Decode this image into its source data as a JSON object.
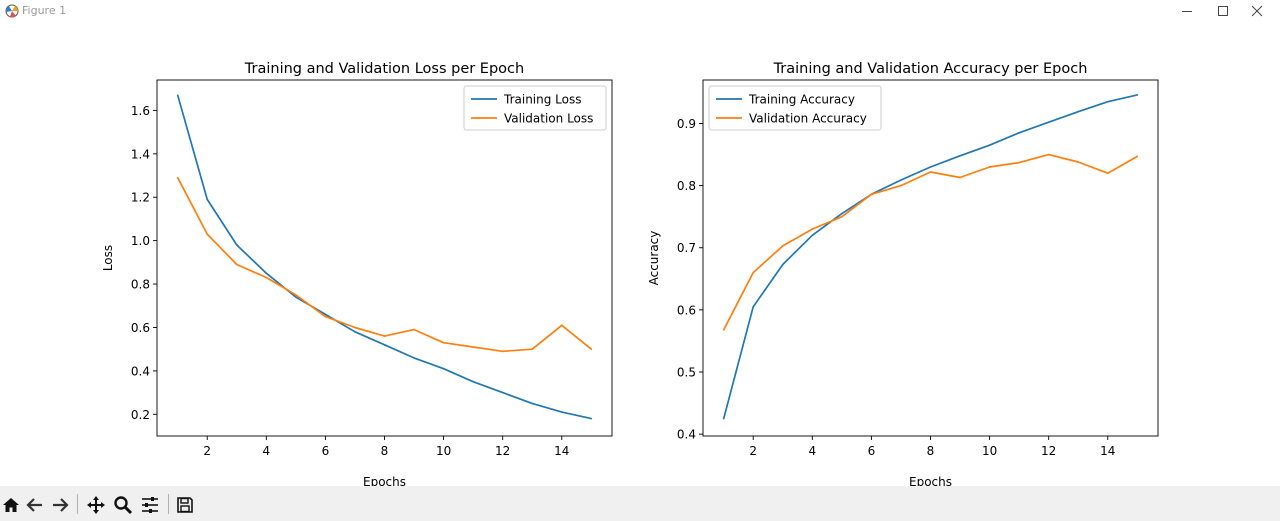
{
  "window": {
    "title": "Figure 1"
  },
  "icons": {
    "app": "matplotlib-figure-icon",
    "minimize": "minimize-icon",
    "maximize": "maximize-icon",
    "close": "close-icon",
    "toolbar": [
      "home-icon",
      "back-arrow-icon",
      "forward-arrow-icon",
      "pan-icon",
      "zoom-icon",
      "configure-subplots-icon",
      "save-icon"
    ]
  },
  "colors": {
    "training": "#1f77b4",
    "validation": "#ff7f0e",
    "toolbar_bg": "#f0f0f0"
  },
  "chart_data": [
    {
      "type": "line",
      "title": "Training and Validation Loss per Epoch",
      "xlabel": "Epochs",
      "ylabel": "Loss",
      "xlim": [
        0.3,
        15.7
      ],
      "ylim": [
        0.1,
        1.74
      ],
      "xticks": [
        2,
        4,
        6,
        8,
        10,
        12,
        14
      ],
      "yticks": [
        0.2,
        0.4,
        0.6,
        0.8,
        1.0,
        1.2,
        1.4,
        1.6
      ],
      "ytick_labels": [
        "0.2",
        "0.4",
        "0.6",
        "0.8",
        "1.0",
        "1.2",
        "1.4",
        "1.6"
      ],
      "grid": false,
      "legend": "upper right",
      "x": [
        1,
        2,
        3,
        4,
        5,
        6,
        7,
        8,
        9,
        10,
        11,
        12,
        13,
        14,
        15
      ],
      "series": [
        {
          "name": "Training Loss",
          "color": "#1f77b4",
          "values": [
            1.67,
            1.19,
            0.98,
            0.85,
            0.74,
            0.66,
            0.58,
            0.52,
            0.46,
            0.41,
            0.35,
            0.3,
            0.25,
            0.21,
            0.18
          ]
        },
        {
          "name": "Validation Loss",
          "color": "#ff7f0e",
          "values": [
            1.29,
            1.03,
            0.89,
            0.83,
            0.75,
            0.65,
            0.6,
            0.56,
            0.59,
            0.53,
            0.51,
            0.49,
            0.5,
            0.61,
            0.5
          ]
        }
      ]
    },
    {
      "type": "line",
      "title": "Training and Validation Accuracy per Epoch",
      "xlabel": "Epochs",
      "ylabel": "Accuracy",
      "xlim": [
        0.3,
        15.7
      ],
      "ylim": [
        0.397,
        0.97
      ],
      "xticks": [
        2,
        4,
        6,
        8,
        10,
        12,
        14
      ],
      "yticks": [
        0.4,
        0.5,
        0.6,
        0.7,
        0.8,
        0.9
      ],
      "ytick_labels": [
        "0.4",
        "0.5",
        "0.6",
        "0.7",
        "0.8",
        "0.9"
      ],
      "grid": false,
      "legend": "upper left",
      "x": [
        1,
        2,
        3,
        4,
        5,
        6,
        7,
        8,
        9,
        10,
        11,
        12,
        13,
        14,
        15
      ],
      "series": [
        {
          "name": "Training Accuracy",
          "color": "#1f77b4",
          "values": [
            0.425,
            0.605,
            0.673,
            0.72,
            0.755,
            0.786,
            0.809,
            0.83,
            0.848,
            0.865,
            0.885,
            0.902,
            0.919,
            0.935,
            0.946
          ]
        },
        {
          "name": "Validation Accuracy",
          "color": "#ff7f0e",
          "values": [
            0.568,
            0.66,
            0.703,
            0.73,
            0.75,
            0.786,
            0.8,
            0.822,
            0.813,
            0.83,
            0.837,
            0.85,
            0.838,
            0.82,
            0.847
          ]
        }
      ]
    }
  ]
}
